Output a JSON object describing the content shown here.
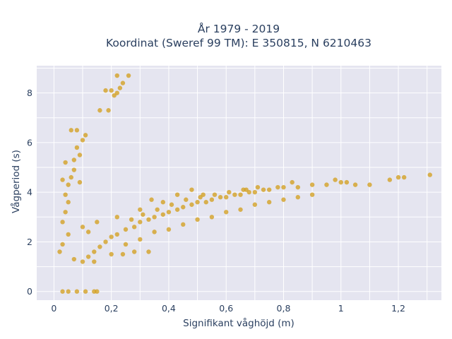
{
  "chart_data": {
    "type": "scatter",
    "title": "År 1979 - 2019",
    "subtitle": "Koordinat (Sweref 99 TM): E 350815, N 6210463",
    "xlabel": "Signifikant våghöjd (m)",
    "ylabel": "Vågperiod (s)",
    "xlim": [
      -0.06,
      1.35
    ],
    "ylim": [
      -0.35,
      9.1
    ],
    "x_ticks": [
      0,
      0.2,
      0.4,
      0.6,
      0.8,
      1,
      1.2
    ],
    "x_tick_labels": [
      "0",
      "0,2",
      "0,4",
      "0,6",
      "0,8",
      "1",
      "1,2"
    ],
    "y_ticks": [
      0,
      2,
      4,
      6,
      8
    ],
    "y_tick_labels": [
      "0",
      "2",
      "4",
      "6",
      "8"
    ],
    "grid": true,
    "marker_color": "#d4a020",
    "background_color": "#e5e5f0",
    "series": [
      {
        "points": [
          [
            0.02,
            1.6
          ],
          [
            0.03,
            1.9
          ],
          [
            0.03,
            2.8
          ],
          [
            0.04,
            3.9
          ],
          [
            0.05,
            4.3
          ],
          [
            0.06,
            4.6
          ],
          [
            0.07,
            5.3
          ],
          [
            0.08,
            5.8
          ],
          [
            0.09,
            5.5
          ],
          [
            0.06,
            6.5
          ],
          [
            0.08,
            6.5
          ],
          [
            0.1,
            6.1
          ],
          [
            0.11,
            6.3
          ],
          [
            0.03,
            4.5
          ],
          [
            0.04,
            5.2
          ],
          [
            0.07,
            4.9
          ],
          [
            0.09,
            4.4
          ],
          [
            0.05,
            3.6
          ],
          [
            0.04,
            3.2
          ],
          [
            0.05,
            2.3
          ],
          [
            0.07,
            1.3
          ],
          [
            0.1,
            1.2
          ],
          [
            0.12,
            1.4
          ],
          [
            0.14,
            1.6
          ],
          [
            0.16,
            1.8
          ],
          [
            0.18,
            2.0
          ],
          [
            0.2,
            2.2
          ],
          [
            0.22,
            2.3
          ],
          [
            0.25,
            2.5
          ],
          [
            0.28,
            2.6
          ],
          [
            0.3,
            2.8
          ],
          [
            0.33,
            2.9
          ],
          [
            0.35,
            3.0
          ],
          [
            0.38,
            3.1
          ],
          [
            0.4,
            3.2
          ],
          [
            0.43,
            3.3
          ],
          [
            0.45,
            3.4
          ],
          [
            0.48,
            3.5
          ],
          [
            0.5,
            3.6
          ],
          [
            0.53,
            3.6
          ],
          [
            0.55,
            3.7
          ],
          [
            0.58,
            3.8
          ],
          [
            0.6,
            3.8
          ],
          [
            0.63,
            3.9
          ],
          [
            0.65,
            3.9
          ],
          [
            0.68,
            4.0
          ],
          [
            0.7,
            4.0
          ],
          [
            0.73,
            4.1
          ],
          [
            0.75,
            4.1
          ],
          [
            0.78,
            4.2
          ],
          [
            0.8,
            4.2
          ],
          [
            0.85,
            4.2
          ],
          [
            0.9,
            4.3
          ],
          [
            0.95,
            4.3
          ],
          [
            1.0,
            4.4
          ],
          [
            1.02,
            4.4
          ],
          [
            1.05,
            4.3
          ],
          [
            1.1,
            4.3
          ],
          [
            1.17,
            4.5
          ],
          [
            1.2,
            4.6
          ],
          [
            1.22,
            4.6
          ],
          [
            1.31,
            4.7
          ],
          [
            0.98,
            4.5
          ],
          [
            0.83,
            4.4
          ],
          [
            0.67,
            4.1
          ],
          [
            0.52,
            3.9
          ],
          [
            0.38,
            3.6
          ],
          [
            0.3,
            3.3
          ],
          [
            0.22,
            3.0
          ],
          [
            0.15,
            2.8
          ],
          [
            0.12,
            2.4
          ],
          [
            0.1,
            2.6
          ],
          [
            0.14,
            1.2
          ],
          [
            0.2,
            1.5
          ],
          [
            0.25,
            1.9
          ],
          [
            0.3,
            2.1
          ],
          [
            0.35,
            2.4
          ],
          [
            0.4,
            2.5
          ],
          [
            0.45,
            2.7
          ],
          [
            0.5,
            2.9
          ],
          [
            0.55,
            3.0
          ],
          [
            0.6,
            3.2
          ],
          [
            0.65,
            3.3
          ],
          [
            0.7,
            3.5
          ],
          [
            0.75,
            3.6
          ],
          [
            0.8,
            3.7
          ],
          [
            0.85,
            3.8
          ],
          [
            0.9,
            3.9
          ],
          [
            0.24,
            1.5
          ],
          [
            0.28,
            1.6
          ],
          [
            0.33,
            1.6
          ],
          [
            0.27,
            2.9
          ],
          [
            0.31,
            3.1
          ],
          [
            0.36,
            3.3
          ],
          [
            0.41,
            3.5
          ],
          [
            0.46,
            3.7
          ],
          [
            0.51,
            3.8
          ],
          [
            0.56,
            3.9
          ],
          [
            0.61,
            4.0
          ],
          [
            0.66,
            4.1
          ],
          [
            0.71,
            4.2
          ],
          [
            0.48,
            4.1
          ],
          [
            0.43,
            3.9
          ],
          [
            0.34,
            3.7
          ],
          [
            0.19,
            7.3
          ],
          [
            0.16,
            7.3
          ],
          [
            0.18,
            8.1
          ],
          [
            0.21,
            7.9
          ],
          [
            0.22,
            8.0
          ],
          [
            0.23,
            8.2
          ],
          [
            0.24,
            8.4
          ],
          [
            0.22,
            8.7
          ],
          [
            0.26,
            8.7
          ],
          [
            0.2,
            8.1
          ],
          [
            0.03,
            0.0
          ],
          [
            0.05,
            0.0
          ],
          [
            0.08,
            0.0
          ],
          [
            0.11,
            0.0
          ],
          [
            0.14,
            0.0
          ],
          [
            0.15,
            0.0
          ]
        ]
      }
    ]
  }
}
